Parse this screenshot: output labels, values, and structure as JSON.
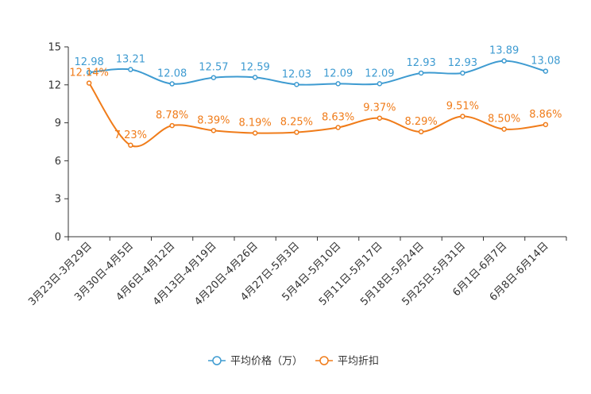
{
  "chart_data": {
    "type": "line",
    "title": "",
    "xlabel": "",
    "ylabel": "",
    "ylim": [
      0,
      15
    ],
    "yticks": [
      0,
      3,
      6,
      9,
      12,
      15
    ],
    "grid": false,
    "legend_position": "bottom-center",
    "categories": [
      "3月23日-3月29日",
      "3月30日-4月5日",
      "4月6日-4月12日",
      "4月13日-4月19日",
      "4月20日-4月26日",
      "4月27日-5月3日",
      "5月4日-5月10日",
      "5月11日-5月17日",
      "5月18日-5月24日",
      "5月25日-5月31日",
      "6月1日-6月7日",
      "6月8日-6月14日"
    ],
    "series": [
      {
        "name": "平均价格（万）",
        "color": "#3e9bd1",
        "values": [
          12.98,
          13.21,
          12.08,
          12.57,
          12.59,
          12.03,
          12.09,
          12.09,
          12.93,
          12.93,
          13.89,
          13.08
        ],
        "labels": [
          "12.98",
          "13.21",
          "12.08",
          "12.57",
          "12.59",
          "12.03",
          "12.09",
          "12.09",
          "12.93",
          "12.93",
          "13.89",
          "13.08"
        ]
      },
      {
        "name": "平均折扣",
        "color": "#f07c1a",
        "values": [
          12.14,
          7.23,
          8.78,
          8.39,
          8.19,
          8.25,
          8.63,
          9.37,
          8.29,
          9.51,
          8.5,
          8.86
        ],
        "labels": [
          "12.14%",
          "7.23%",
          "8.78%",
          "8.39%",
          "8.19%",
          "8.25%",
          "8.63%",
          "9.37%",
          "8.29%",
          "9.51%",
          "8.50%",
          "8.86%"
        ]
      }
    ]
  }
}
